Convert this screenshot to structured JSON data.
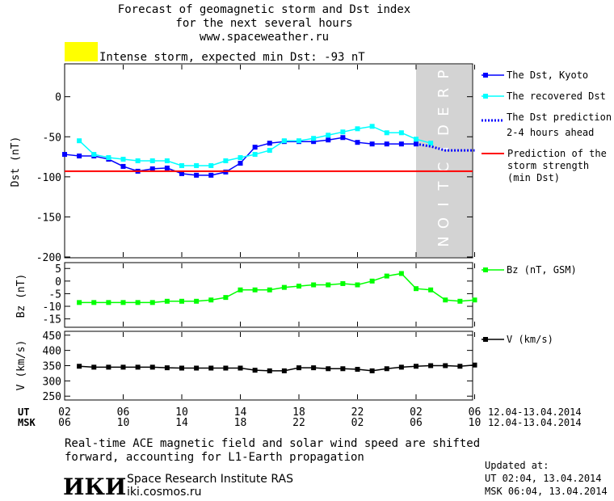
{
  "header": {
    "title_line1": "Forecast of geomagnetic storm and Dst index",
    "title_line2": "for the next several hours",
    "site": "www.spaceweather.ru",
    "storm_label": "Intense storm, expected min Dst: -93 nT",
    "storm_color": "#ffff00"
  },
  "prediction_text": "PREDICTION",
  "time_axis": {
    "ut_label": "UT",
    "msk_label": "MSK",
    "ut_ticks": [
      "02",
      "06",
      "10",
      "14",
      "18",
      "22",
      "02",
      "06"
    ],
    "msk_ticks": [
      "06",
      "10",
      "14",
      "18",
      "22",
      "02",
      "06",
      "10"
    ],
    "date_range": "12.04-13.04.2014"
  },
  "footer": {
    "note_line1": "Real-time ACE magnetic field and solar wind speed are shifted",
    "note_line2": "forward, accounting for L1-Earth propagation",
    "institute": "Space Research Institute RAS",
    "website": "iki.cosmos.ru",
    "logo_text": "ИКИ",
    "updated_label": "Updated at:",
    "updated_ut": "UT  02:04, 13.04.2014",
    "updated_msk": "MSK 06:04, 13.04.2014"
  },
  "chart_data": [
    {
      "type": "line",
      "ylabel": "Dst (nT)",
      "ylim": [
        -200,
        40
      ],
      "yticks": [
        "0",
        "-50",
        "-100",
        "-150",
        "-200"
      ],
      "x_hours": [
        0,
        1,
        2,
        3,
        4,
        5,
        6,
        7,
        8,
        9,
        10,
        11,
        12,
        13,
        14,
        15,
        16,
        17,
        18,
        19,
        20,
        21,
        22,
        23,
        24,
        25,
        26,
        27,
        28,
        29,
        30,
        31,
        32,
        33,
        34,
        35
      ],
      "series": [
        {
          "name": "The Dst, Kyoto",
          "color": "#0000ff",
          "x": [
            0,
            1,
            2,
            3,
            4,
            5,
            6,
            7,
            8,
            9,
            10,
            11,
            12,
            13,
            14,
            15,
            16,
            17,
            18,
            19,
            20,
            21,
            22,
            23,
            24
          ],
          "values": [
            -72,
            -74,
            -74,
            -78,
            -87,
            -93,
            -90,
            -89,
            -96,
            -98,
            -98,
            -94,
            -83,
            -63,
            -58,
            -56,
            -56,
            -56,
            -54,
            -51,
            -57,
            -59,
            -59,
            -59,
            -59
          ]
        },
        {
          "name": "The recovered Dst",
          "color": "#00ffff",
          "x": [
            1,
            2,
            3,
            4,
            5,
            6,
            7,
            8,
            9,
            10,
            11,
            12,
            13,
            14,
            15,
            16,
            17,
            18,
            19,
            20,
            21,
            22,
            23,
            24,
            25
          ],
          "values": [
            -55,
            -72,
            -76,
            -78,
            -80,
            -80,
            -80,
            -86,
            -86,
            -86,
            -80,
            -76,
            -72,
            -67,
            -55,
            -55,
            -52,
            -48,
            -44,
            -40,
            -37,
            -45,
            -45,
            -53,
            -58
          ]
        },
        {
          "name": "The Dst prediction 2-4 hours ahead",
          "color": "#0000ff",
          "x": [
            24,
            25,
            26,
            27,
            28
          ],
          "values": [
            -59,
            -62,
            -67,
            -67,
            -67
          ]
        },
        {
          "name": "Prediction of the storm strength (min Dst)",
          "color": "#ff0000",
          "x": [
            0,
            35
          ],
          "values": [
            -93,
            -93
          ]
        }
      ],
      "prediction_zone_x": [
        24,
        28
      ]
    },
    {
      "type": "line",
      "ylabel": "Bz (nT)",
      "ylim": [
        -18,
        7
      ],
      "yticks": [
        "5",
        "0",
        "-5",
        "-10",
        "-15"
      ],
      "series": [
        {
          "name": "Bz (nT, GSM)",
          "color": "#00ff00",
          "x": [
            1,
            2,
            3,
            4,
            5,
            6,
            7,
            8,
            9,
            10,
            11,
            12,
            13,
            14,
            15,
            16,
            17,
            18,
            19,
            20,
            21,
            22,
            23,
            24,
            25,
            26,
            27,
            28
          ],
          "values": [
            -8.5,
            -8.5,
            -8.5,
            -8.5,
            -8.5,
            -8.5,
            -8,
            -8,
            -8,
            -7.5,
            -6.5,
            -3.5,
            -3.5,
            -3.5,
            -2.5,
            -2,
            -1.5,
            -1.5,
            -1,
            -1.5,
            0,
            2,
            3,
            -3,
            -3.5,
            -7.5,
            -8,
            -7.5
          ]
        }
      ]
    },
    {
      "type": "line",
      "ylabel": "V (km/s)",
      "ylim": [
        240,
        460
      ],
      "yticks": [
        "450",
        "400",
        "350",
        "300",
        "250"
      ],
      "series": [
        {
          "name": "V (km/s)",
          "color": "#000000",
          "x": [
            1,
            2,
            3,
            4,
            5,
            6,
            7,
            8,
            9,
            10,
            11,
            12,
            13,
            14,
            15,
            16,
            17,
            18,
            19,
            20,
            21,
            22,
            23,
            24,
            25,
            26,
            27,
            28
          ],
          "values": [
            348,
            345,
            345,
            345,
            345,
            345,
            343,
            342,
            342,
            342,
            342,
            342,
            335,
            333,
            333,
            343,
            343,
            340,
            340,
            338,
            333,
            340,
            345,
            348,
            350,
            350,
            348,
            352
          ]
        }
      ]
    }
  ],
  "legend": {
    "dst_kyoto": "The Dst, Kyoto",
    "recovered": "The recovered Dst",
    "prediction1": "The Dst prediction",
    "prediction2": "2-4 hours ahead",
    "strength1": "Prediction of the",
    "strength2": "storm strength",
    "strength3": "(min Dst)",
    "bz": "Bz (nT, GSM)",
    "v": "V (km/s)"
  }
}
